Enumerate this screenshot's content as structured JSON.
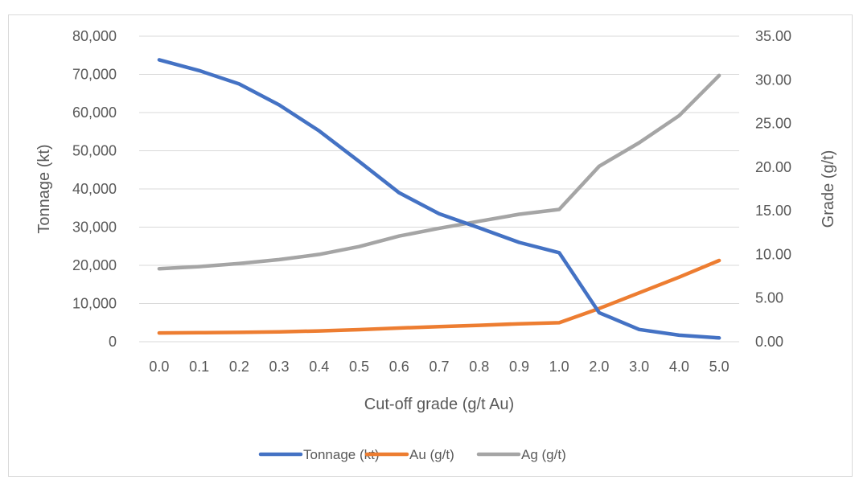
{
  "chart_data": {
    "type": "line",
    "title": "",
    "xlabel": "Cut-off grade (g/t Au)",
    "ylabel": "Tonnage (kt)",
    "y2label": "Grade (g/t)",
    "categories": [
      "0.0",
      "0.1",
      "0.2",
      "0.3",
      "0.4",
      "0.5",
      "0.6",
      "0.7",
      "0.8",
      "0.9",
      "1.0",
      "2.0",
      "3.0",
      "4.0",
      "5.0"
    ],
    "ylim": [
      0,
      80000
    ],
    "y2lim": [
      0,
      35
    ],
    "yticks": [
      "0",
      "10,000",
      "20,000",
      "30,000",
      "40,000",
      "50,000",
      "60,000",
      "70,000",
      "80,000"
    ],
    "y2ticks": [
      "0.00",
      "5.00",
      "10.00",
      "15.00",
      "20.00",
      "25.00",
      "30.00",
      "35.00"
    ],
    "grid": true,
    "legend_position": "bottom",
    "series": [
      {
        "name": "Tonnage (kt)",
        "axis": "left",
        "color": "#4472c4",
        "values": [
          73800,
          71000,
          67500,
          62000,
          55200,
          47200,
          39000,
          33500,
          29800,
          26000,
          23300,
          7600,
          3200,
          1700,
          1000
        ]
      },
      {
        "name": "Au (g/t)",
        "axis": "right",
        "color": "#ed7d31",
        "values": [
          1.0,
          1.03,
          1.07,
          1.13,
          1.23,
          1.38,
          1.57,
          1.73,
          1.88,
          2.05,
          2.17,
          3.8,
          5.6,
          7.4,
          9.3
        ]
      },
      {
        "name": "Ag (g/t)",
        "axis": "right",
        "color": "#a5a5a5",
        "values": [
          8.35,
          8.6,
          8.95,
          9.4,
          10.0,
          10.9,
          12.1,
          13.0,
          13.8,
          14.6,
          15.15,
          20.1,
          22.8,
          25.9,
          30.5
        ]
      }
    ]
  }
}
